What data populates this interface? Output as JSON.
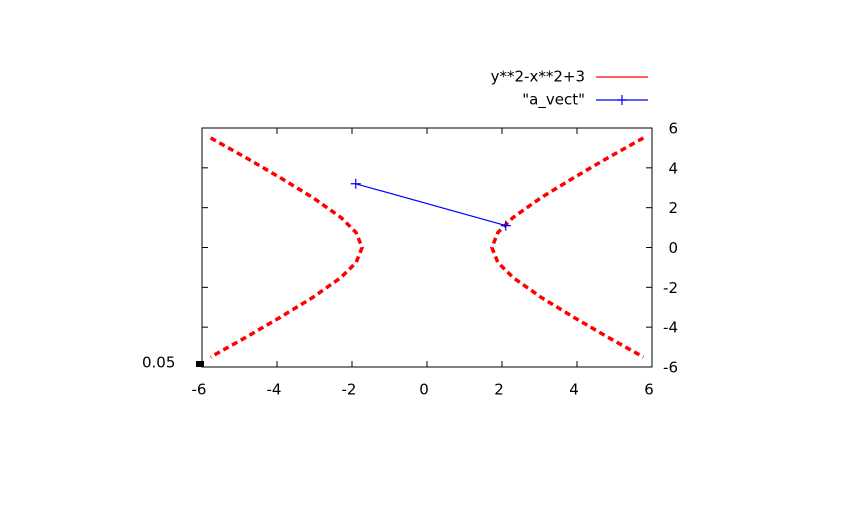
{
  "chart_data": {
    "type": "line",
    "xlim": [
      -6,
      6
    ],
    "xticks": [
      -6,
      -4,
      -2,
      0,
      2,
      4,
      6
    ],
    "ylim": [
      -6,
      6
    ],
    "yticks": [
      -6,
      -4,
      -2,
      0,
      2,
      4,
      6
    ],
    "annotation": "0.05",
    "legend": "top-right",
    "series": [
      {
        "name": "y**2-x**2+3",
        "color": "#ff0000",
        "style": "dashed",
        "x": [
          -5.77,
          -4.82,
          -3.91,
          -3.04,
          -2.29,
          -1.89,
          -1.73,
          -1.89,
          -2.29,
          -3.04,
          -3.91,
          -4.82,
          -5.77,
          null,
          5.77,
          4.82,
          3.91,
          3.04,
          2.29,
          1.89,
          1.73,
          1.89,
          2.29,
          3.04,
          3.91,
          4.82,
          5.77
        ],
        "values": [
          5.5,
          4.5,
          3.5,
          2.5,
          1.5,
          0.75,
          0,
          -0.75,
          -1.5,
          -2.5,
          -3.5,
          -4.5,
          -5.5,
          null,
          5.5,
          4.5,
          3.5,
          2.5,
          1.5,
          0.75,
          0,
          -0.75,
          -1.5,
          -2.5,
          -3.5,
          -4.5,
          -5.5
        ]
      },
      {
        "name": "\"a_vect\"",
        "color": "#0000ff",
        "style": "linespoints",
        "x": [
          -1.9,
          2.1
        ],
        "values": [
          3.2,
          1.1
        ]
      }
    ]
  }
}
